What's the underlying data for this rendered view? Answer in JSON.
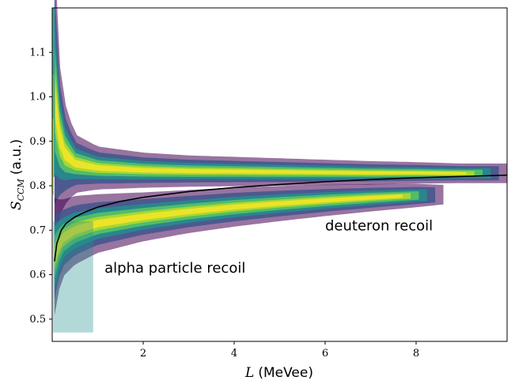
{
  "chart_data": {
    "type": "heatmap",
    "title": "",
    "xlabel_italic": "L",
    "xlabel_unit": "(MeVee)",
    "ylabel_main": "S",
    "ylabel_sub": "CCM",
    "ylabel_unit": "(a.u.)",
    "xlim": [
      0.0,
      10.0
    ],
    "ylim": [
      0.45,
      1.2
    ],
    "xticks": [
      2,
      4,
      6,
      8
    ],
    "xtick_labels": [
      "2",
      "4",
      "6",
      "8"
    ],
    "yticks": [
      0.5,
      0.6,
      0.7,
      0.8,
      0.9,
      1.0,
      1.1
    ],
    "ytick_labels": [
      "0.5",
      "0.6",
      "0.7",
      "0.8",
      "0.9",
      "1.0",
      "1.1"
    ],
    "grid": false,
    "colormap": "viridis",
    "bands": [
      {
        "name": "upper band",
        "x": [
          0.05,
          0.2,
          0.5,
          1.0,
          2.0,
          3.0,
          4.0,
          5.0,
          6.0,
          7.0,
          8.0,
          9.0,
          10.0
        ],
        "center": [
          1.0,
          0.88,
          0.85,
          0.84,
          0.835,
          0.833,
          0.832,
          0.831,
          0.83,
          0.829,
          0.829,
          0.828,
          0.828
        ],
        "width": [
          0.15,
          0.06,
          0.03,
          0.022,
          0.018,
          0.016,
          0.015,
          0.014,
          0.013,
          0.012,
          0.011,
          0.01,
          0.01
        ]
      },
      {
        "name": "lower band",
        "x": [
          0.05,
          0.2,
          0.5,
          1.0,
          2.0,
          3.0,
          4.0,
          5.0,
          6.0,
          7.0,
          8.0,
          8.6
        ],
        "center": [
          0.64,
          0.68,
          0.7,
          0.715,
          0.73,
          0.742,
          0.752,
          0.76,
          0.767,
          0.773,
          0.778,
          0.78
        ],
        "width": [
          0.06,
          0.04,
          0.035,
          0.03,
          0.025,
          0.022,
          0.02,
          0.018,
          0.016,
          0.014,
          0.012,
          0.01
        ]
      }
    ],
    "separation_curve": {
      "x": [
        0.05,
        0.1,
        0.2,
        0.3,
        0.5,
        0.75,
        1.0,
        1.5,
        2.0,
        3.0,
        4.0,
        5.0,
        6.0,
        7.0,
        8.0,
        9.0,
        10.0
      ],
      "y": [
        0.63,
        0.67,
        0.7,
        0.715,
        0.73,
        0.742,
        0.752,
        0.765,
        0.774,
        0.787,
        0.796,
        0.803,
        0.809,
        0.814,
        0.818,
        0.821,
        0.824
      ]
    },
    "annotations": [
      {
        "text": "deuteron recoil",
        "x": 6.0,
        "y": 0.7
      },
      {
        "text": "alpha particle recoil",
        "x": 1.15,
        "y": 0.605
      }
    ]
  }
}
